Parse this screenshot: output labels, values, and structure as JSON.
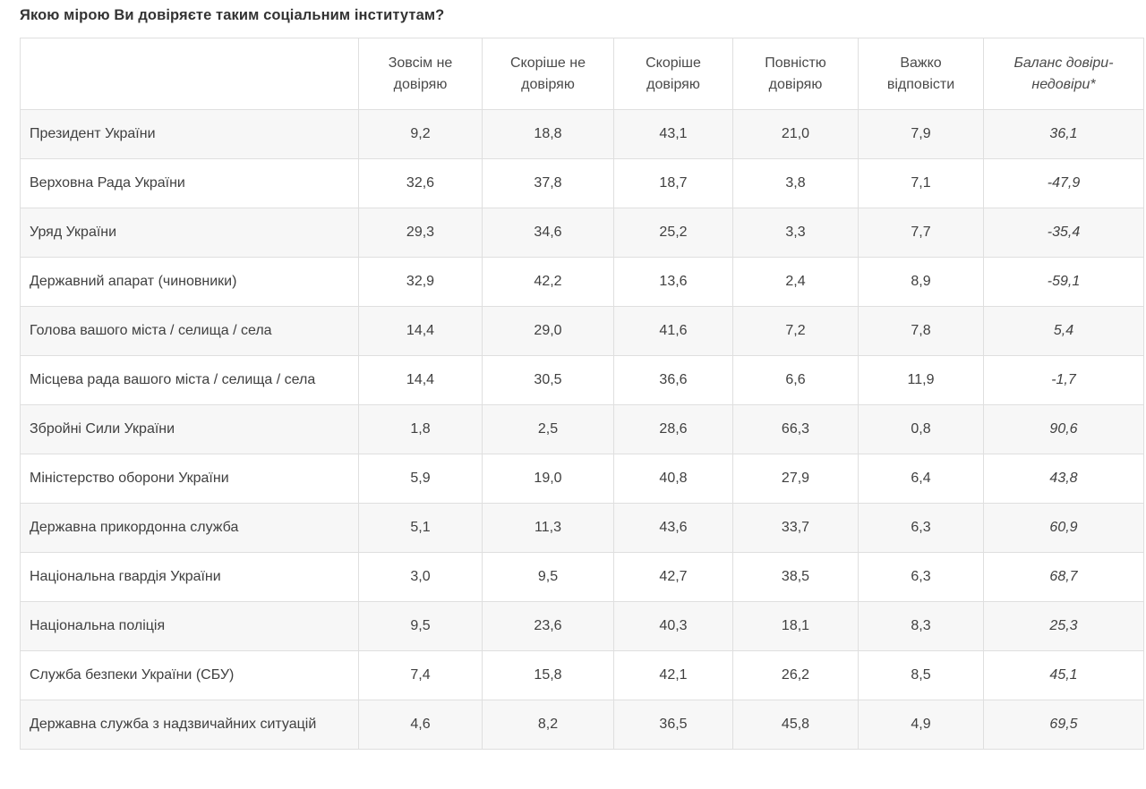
{
  "title": "Якою мірою Ви довіряєте таким соціальним інститутам?",
  "table": {
    "columns": [
      "",
      "Зовсім не довіряю",
      "Скоріше не довіряю",
      "Скоріше довіряю",
      "Повністю довіряю",
      "Важко відповісти",
      "Баланс довіри-недовіри*"
    ],
    "rows": [
      {
        "name": "Президент України",
        "values": [
          "9,2",
          "18,8",
          "43,1",
          "21,0",
          "7,9",
          "36,1"
        ]
      },
      {
        "name": "Верховна Рада України",
        "values": [
          "32,6",
          "37,8",
          "18,7",
          "3,8",
          "7,1",
          "-47,9"
        ]
      },
      {
        "name": "Уряд України",
        "values": [
          "29,3",
          "34,6",
          "25,2",
          "3,3",
          "7,7",
          "-35,4"
        ]
      },
      {
        "name": "Державний апарат (чиновники)",
        "values": [
          "32,9",
          "42,2",
          "13,6",
          "2,4",
          "8,9",
          "-59,1"
        ]
      },
      {
        "name": "Голова вашого міста / селища / села",
        "values": [
          "14,4",
          "29,0",
          "41,6",
          "7,2",
          "7,8",
          "5,4"
        ]
      },
      {
        "name": "Місцева рада вашого міста / селища / села",
        "values": [
          "14,4",
          "30,5",
          "36,6",
          "6,6",
          "11,9",
          "-1,7"
        ]
      },
      {
        "name": "Збройні Сили України",
        "values": [
          "1,8",
          "2,5",
          "28,6",
          "66,3",
          "0,8",
          "90,6"
        ]
      },
      {
        "name": "Міністерство оборони України",
        "values": [
          "5,9",
          "19,0",
          "40,8",
          "27,9",
          "6,4",
          "43,8"
        ]
      },
      {
        "name": "Державна прикордонна служба",
        "values": [
          "5,1",
          "11,3",
          "43,6",
          "33,7",
          "6,3",
          "60,9"
        ]
      },
      {
        "name": "Національна гвардія України",
        "values": [
          "3,0",
          "9,5",
          "42,7",
          "38,5",
          "6,3",
          "68,7"
        ]
      },
      {
        "name": "Національна поліція",
        "values": [
          "9,5",
          "23,6",
          "40,3",
          "18,1",
          "8,3",
          "25,3"
        ]
      },
      {
        "name": "Служба безпеки України (СБУ)",
        "values": [
          "7,4",
          "15,8",
          "42,1",
          "26,2",
          "8,5",
          "45,1"
        ]
      },
      {
        "name": "Державна служба з надзвичайних ситуацій",
        "values": [
          "4,6",
          "8,2",
          "36,5",
          "45,8",
          "4,9",
          "69,5"
        ]
      }
    ]
  },
  "chart_data": {
    "type": "table",
    "title": "Якою мірою Ви довіряєте таким соціальним інститутам?",
    "categories": [
      "Президент України",
      "Верховна Рада України",
      "Уряд України",
      "Державний апарат (чиновники)",
      "Голова вашого міста / селища / села",
      "Місцева рада вашого міста / селища / села",
      "Збройні Сили України",
      "Міністерство оборони України",
      "Державна прикордонна служба",
      "Національна гвардія України",
      "Національна поліція",
      "Служба безпеки України (СБУ)",
      "Державна служба з надзвичайних ситуацій"
    ],
    "series": [
      {
        "name": "Зовсім не довіряю",
        "values": [
          9.2,
          32.6,
          29.3,
          32.9,
          14.4,
          14.4,
          1.8,
          5.9,
          5.1,
          3.0,
          9.5,
          7.4,
          4.6
        ]
      },
      {
        "name": "Скоріше не довіряю",
        "values": [
          18.8,
          37.8,
          34.6,
          42.2,
          29.0,
          30.5,
          2.5,
          19.0,
          11.3,
          9.5,
          23.6,
          15.8,
          8.2
        ]
      },
      {
        "name": "Скоріше довіряю",
        "values": [
          43.1,
          18.7,
          25.2,
          13.6,
          41.6,
          36.6,
          28.6,
          40.8,
          43.6,
          42.7,
          40.3,
          42.1,
          36.5
        ]
      },
      {
        "name": "Повністю довіряю",
        "values": [
          21.0,
          3.8,
          3.3,
          2.4,
          7.2,
          6.6,
          66.3,
          27.9,
          33.7,
          38.5,
          18.1,
          26.2,
          45.8
        ]
      },
      {
        "name": "Важко відповісти",
        "values": [
          7.9,
          7.1,
          7.7,
          8.9,
          7.8,
          11.9,
          0.8,
          6.4,
          6.3,
          6.3,
          8.3,
          8.5,
          4.9
        ]
      },
      {
        "name": "Баланс довіри-недовіри*",
        "values": [
          36.1,
          -47.9,
          -35.4,
          -59.1,
          5.4,
          -1.7,
          90.6,
          43.8,
          60.9,
          68.7,
          25.3,
          45.1,
          69.5
        ]
      }
    ],
    "number_format": "comma-decimal",
    "notes": "Last column (Баланс довіри-недовіри*) rendered in italics; rows alternate white / #f7f7f7"
  },
  "colors": {
    "row_stripe": "#f7f7f7",
    "border": "#dfdfdf",
    "title_text": "#333333",
    "header_text": "#4a4a4a",
    "cell_text": "#404040",
    "background": "#ffffff"
  }
}
